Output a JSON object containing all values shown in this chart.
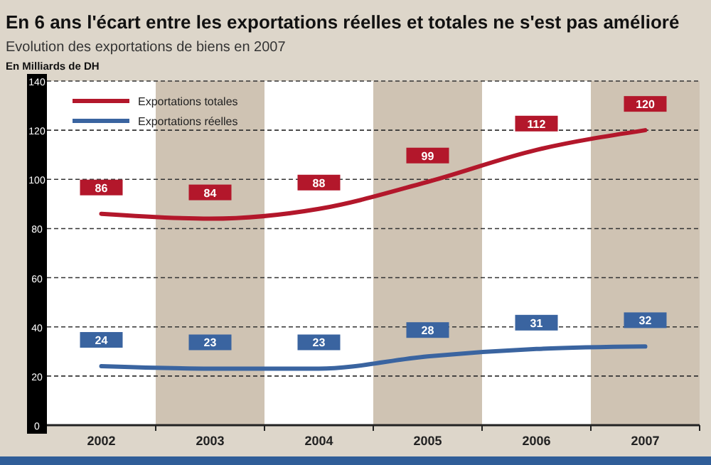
{
  "chart_data": {
    "type": "line",
    "title": "En 6 ans l'écart entre les exportations réelles et totales ne s'est pas amélioré",
    "subtitle": "Evolution des exportations de biens en 2007",
    "ylabel": "En Milliards de DH",
    "categories": [
      "2002",
      "2003",
      "2004",
      "2005",
      "2006",
      "2007"
    ],
    "series": [
      {
        "name": "Exportations totales",
        "color": "#b3172b",
        "values": [
          86,
          84,
          88,
          99,
          112,
          120
        ]
      },
      {
        "name": "Exportations réelles",
        "color": "#3a64a0",
        "values": [
          24,
          23,
          23,
          28,
          31,
          32
        ]
      }
    ],
    "ylim": [
      0,
      140
    ],
    "yticks": [
      0,
      20,
      40,
      60,
      80,
      100,
      120,
      140
    ],
    "grid": "y",
    "legend": "top left",
    "data_labels": true,
    "line_style": "solid",
    "marker": "none"
  }
}
